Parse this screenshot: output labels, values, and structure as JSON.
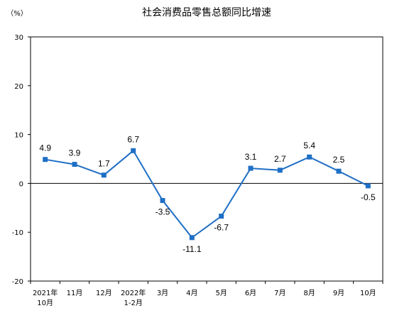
{
  "chart_data": {
    "type": "line",
    "title": "社会消费品零售总额同比增速",
    "unit_label": "（%）",
    "ylim": [
      -20,
      30
    ],
    "yticks": [
      30,
      20,
      10,
      0,
      -10,
      -20
    ],
    "grid": false,
    "categories": [
      {
        "line1": "2021年",
        "line2": "10月"
      },
      {
        "line1": "11月",
        "line2": ""
      },
      {
        "line1": "12月",
        "line2": ""
      },
      {
        "line1": "2022年",
        "line2": "1-2月"
      },
      {
        "line1": "3月",
        "line2": ""
      },
      {
        "line1": "4月",
        "line2": ""
      },
      {
        "line1": "5月",
        "line2": ""
      },
      {
        "line1": "6月",
        "line2": ""
      },
      {
        "line1": "7月",
        "line2": ""
      },
      {
        "line1": "8月",
        "line2": ""
      },
      {
        "line1": "9月",
        "line2": ""
      },
      {
        "line1": "10月",
        "line2": ""
      }
    ],
    "values": [
      4.9,
      3.9,
      1.7,
      6.7,
      -3.5,
      -11.1,
      -6.7,
      3.1,
      2.7,
      5.4,
      2.5,
      -0.5
    ],
    "data_labels": [
      "4.9",
      "3.9",
      "1.7",
      "6.7",
      "-3.5",
      "-11.1",
      "-6.7",
      "3.1",
      "2.7",
      "5.4",
      "2.5",
      "-0.5"
    ],
    "colors": {
      "line": "#1f6fc5",
      "marker": "#1f6fc5",
      "axis": "#000000"
    }
  }
}
